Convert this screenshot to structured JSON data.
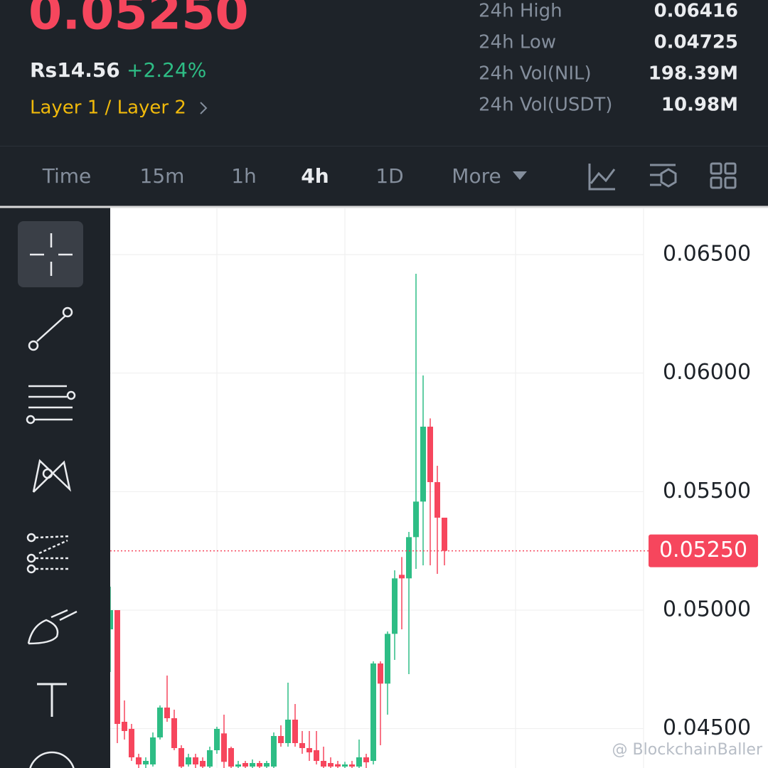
{
  "header": {
    "price": "0.05250",
    "fiat_price": "Rs14.56",
    "change": "+2.24%",
    "category": "Layer 1 / Layer 2",
    "stats": [
      {
        "label": "24h High",
        "value": "0.06416"
      },
      {
        "label": "24h Low",
        "value": "0.04725"
      },
      {
        "label": "24h Vol(NIL)",
        "value": "198.39M"
      },
      {
        "label": "24h Vol(USDT)",
        "value": "10.98M"
      }
    ]
  },
  "tabs": [
    "Time",
    "15m",
    "1h",
    "4h",
    "1D",
    "More"
  ],
  "active_tab": 3,
  "watermark": "@ BlockchainBaller",
  "chart_data": {
    "type": "candlestick",
    "up_color": "#2ebd85",
    "down_color": "#f6465d",
    "ylim": [
      0.04334,
      0.06704
    ],
    "yticks": [
      {
        "value": 0.045,
        "label": "0.04500"
      },
      {
        "value": 0.05,
        "label": "0.05000"
      },
      {
        "value": 0.055,
        "label": "0.05500"
      },
      {
        "value": 0.06,
        "label": "0.06000"
      },
      {
        "value": 0.065,
        "label": "0.06500"
      }
    ],
    "grid": true,
    "last_price": {
      "value": 0.0525,
      "label": "0.05250"
    },
    "open": [
      0.04919,
      0.05,
      0.04529,
      0.04499,
      0.04379,
      0.04349,
      0.04349,
      0.04463,
      0.04589,
      0.04544,
      0.04418,
      0.04349,
      0.04379,
      0.04364,
      0.0434,
      0.04409,
      0.0448,
      0.04418,
      0.0434,
      0.04355,
      0.0434,
      0.04355,
      0.0434,
      0.0434,
      0.04469,
      0.04439,
      0.04538,
      0.04439,
      0.04418,
      0.04409,
      0.04364,
      0.04355,
      0.0435,
      0.0434,
      0.04349,
      0.0434,
      0.04379,
      0.04364,
      0.04775,
      0.0469,
      0.049,
      0.05149,
      0.05134,
      0.05308,
      0.05458,
      0.05774,
      0.0554,
      0.0539
    ],
    "high": [
      0.05099,
      0.05,
      0.04619,
      0.0452,
      0.04394,
      0.04379,
      0.04484,
      0.04598,
      0.04724,
      0.0458,
      0.0443,
      0.04394,
      0.04394,
      0.04379,
      0.04424,
      0.04508,
      0.04559,
      0.04424,
      0.04364,
      0.04364,
      0.0437,
      0.04364,
      0.04364,
      0.04484,
      0.04514,
      0.04694,
      0.04604,
      0.0449,
      0.0449,
      0.0449,
      0.04424,
      0.04379,
      0.04364,
      0.0436,
      0.04364,
      0.04454,
      0.04394,
      0.04784,
      0.04784,
      0.0491,
      0.05168,
      0.05224,
      0.0533,
      0.06419,
      0.0599,
      0.05809,
      0.05609,
      0.0539
    ],
    "low": [
      0.04739,
      0.04439,
      0.04454,
      0.04364,
      0.04334,
      0.04334,
      0.0434,
      0.04454,
      0.04529,
      0.04409,
      0.04334,
      0.0434,
      0.04334,
      0.04334,
      0.04334,
      0.04394,
      0.04334,
      0.04334,
      0.04334,
      0.04334,
      0.04334,
      0.04334,
      0.04334,
      0.04334,
      0.04424,
      0.04424,
      0.04424,
      0.04394,
      0.04364,
      0.04349,
      0.04334,
      0.04334,
      0.04334,
      0.04334,
      0.04334,
      0.04334,
      0.04334,
      0.04349,
      0.0443,
      0.04559,
      0.0479,
      0.04919,
      0.0473,
      0.05174,
      0.05189,
      0.05189,
      0.05153,
      0.05189
    ],
    "close": [
      0.05,
      0.0452,
      0.0449,
      0.04379,
      0.04349,
      0.04364,
      0.04463,
      0.04589,
      0.04544,
      0.04418,
      0.0434,
      0.04379,
      0.04349,
      0.0434,
      0.04409,
      0.04499,
      0.0436,
      0.0434,
      0.04349,
      0.0434,
      0.04355,
      0.0434,
      0.04355,
      0.04469,
      0.04439,
      0.04538,
      0.04439,
      0.04418,
      0.044,
      0.04364,
      0.0434,
      0.0434,
      0.0434,
      0.04349,
      0.0434,
      0.04379,
      0.04358,
      0.04775,
      0.0469,
      0.049,
      0.05134,
      0.05134,
      0.05308,
      0.05458,
      0.05774,
      0.0554,
      0.0539,
      0.0525
    ]
  }
}
